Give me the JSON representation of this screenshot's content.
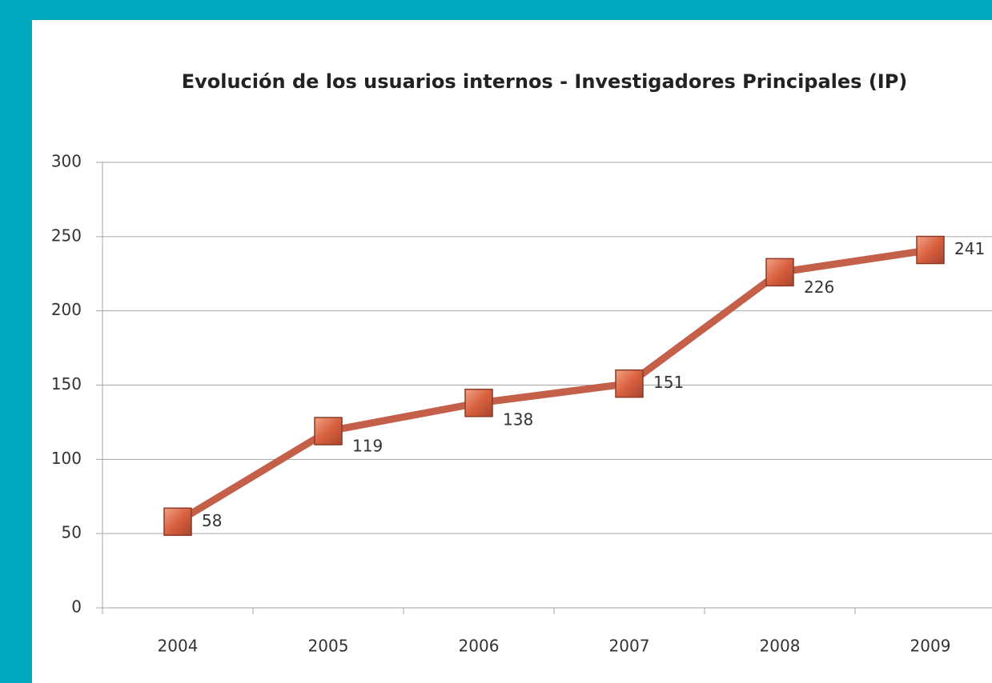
{
  "chart_data": {
    "type": "line",
    "title": "Evolución de los usuarios internos - Investigadores Principales (IP)",
    "categories": [
      "2004",
      "2005",
      "2006",
      "2007",
      "2008",
      "2009"
    ],
    "series": [
      {
        "name": "IP",
        "color": "#c4604a",
        "values": [
          58,
          119,
          138,
          151,
          226,
          241
        ]
      }
    ],
    "ylim": [
      0,
      300
    ],
    "yticks": [
      0,
      50,
      100,
      150,
      200,
      250,
      300
    ],
    "grid": true,
    "legend": false
  }
}
